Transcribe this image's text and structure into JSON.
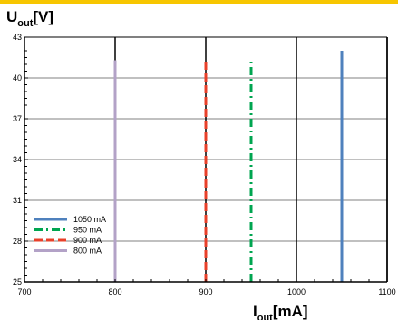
{
  "chart_data": {
    "type": "line",
    "ylabel": {
      "main": "U",
      "sub": "out",
      "unit": "[V]"
    },
    "xlabel": {
      "main": "I",
      "sub": "out",
      "unit": "[mA]"
    },
    "xlim": [
      700,
      1100
    ],
    "ylim": [
      25,
      43
    ],
    "xticks": [
      700,
      800,
      900,
      1000,
      1100
    ],
    "yticks": [
      25,
      28,
      31,
      34,
      37,
      40,
      43
    ],
    "grid": true,
    "legend_placement": "bottom-left",
    "series": [
      {
        "name": "1050 mA",
        "color": "#4f81bd",
        "dash": "solid",
        "x": [
          1050,
          1050
        ],
        "y": [
          25,
          42
        ]
      },
      {
        "name": "950 mA",
        "color": "#00a550",
        "dash": "dashdot",
        "x": [
          950,
          950
        ],
        "y": [
          25,
          41.2
        ]
      },
      {
        "name": "900 mA",
        "color": "#e8402a",
        "dash": "dashed",
        "x": [
          900,
          900
        ],
        "y": [
          25,
          41.3
        ]
      },
      {
        "name": "800 mA",
        "color": "#b3a2c7",
        "dash": "solid",
        "x": [
          800,
          800
        ],
        "y": [
          25,
          41.3
        ]
      }
    ]
  },
  "colors": {
    "accent_bar": "#f7c600"
  }
}
